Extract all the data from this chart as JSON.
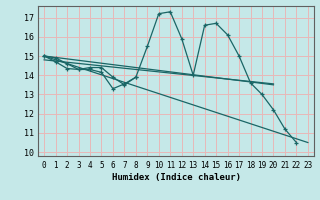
{
  "xlabel": "Humidex (Indice chaleur)",
  "xlim": [
    -0.5,
    23.5
  ],
  "ylim": [
    9.8,
    17.6
  ],
  "yticks": [
    10,
    11,
    12,
    13,
    14,
    15,
    16,
    17
  ],
  "xticks": [
    0,
    1,
    2,
    3,
    4,
    5,
    6,
    7,
    8,
    9,
    10,
    11,
    12,
    13,
    14,
    15,
    16,
    17,
    18,
    19,
    20,
    21,
    22,
    23
  ],
  "bg_color": "#c5e8e8",
  "grid_color": "#e8b8b8",
  "line_color": "#1a6666",
  "lines": [
    {
      "x": [
        0,
        1,
        2,
        3,
        4,
        5,
        6,
        7,
        8,
        9,
        10,
        11,
        12,
        13,
        14,
        15,
        16,
        17,
        18,
        19,
        20,
        21,
        22
      ],
      "y": [
        15.0,
        14.9,
        14.6,
        14.3,
        14.4,
        14.4,
        13.9,
        13.5,
        13.9,
        15.5,
        17.2,
        17.3,
        15.9,
        14.0,
        16.6,
        16.7,
        16.1,
        15.0,
        13.6,
        13.0,
        12.2,
        11.2,
        10.5
      ]
    },
    {
      "x": [
        0,
        1,
        2,
        3,
        4,
        5,
        6,
        7,
        8
      ],
      "y": [
        15.0,
        14.7,
        14.35,
        14.3,
        14.3,
        14.15,
        13.3,
        13.55,
        13.9
      ]
    },
    {
      "x": [
        0,
        20
      ],
      "y": [
        15.0,
        13.5
      ]
    },
    {
      "x": [
        0,
        20
      ],
      "y": [
        14.8,
        13.55
      ]
    },
    {
      "x": [
        0,
        23
      ],
      "y": [
        15.0,
        10.5
      ]
    }
  ]
}
